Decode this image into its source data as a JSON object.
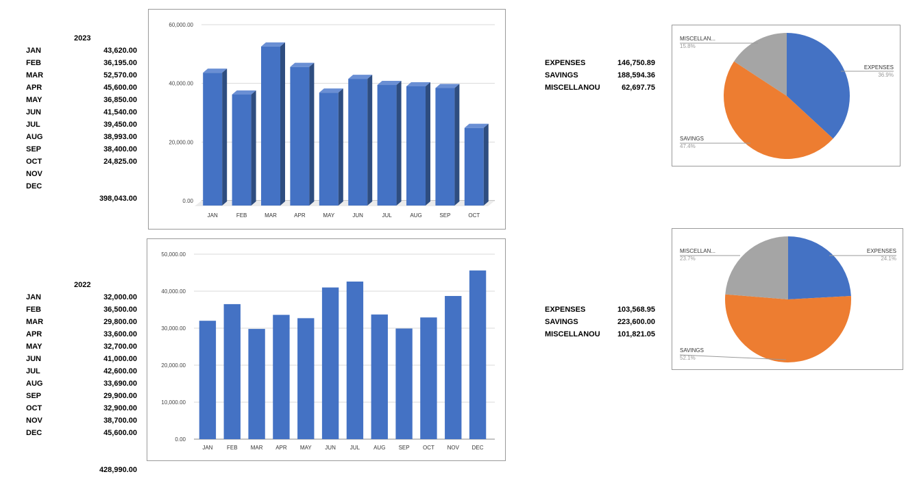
{
  "tables": [
    {
      "year": "2023",
      "months": [
        "JAN",
        "FEB",
        "MAR",
        "APR",
        "MAY",
        "JUN",
        "JUL",
        "AUG",
        "SEP",
        "OCT",
        "NOV",
        "DEC"
      ],
      "values": [
        "43,620.00",
        "36,195.00",
        "52,570.00",
        "45,600.00",
        "36,850.00",
        "41,540.00",
        "39,450.00",
        "38,993.00",
        "38,400.00",
        "24,825.00",
        "",
        ""
      ],
      "total": "398,043.00"
    },
    {
      "year": "2022",
      "months": [
        "JAN",
        "FEB",
        "MAR",
        "APR",
        "MAY",
        "JUN",
        "JUL",
        "AUG",
        "SEP",
        "OCT",
        "NOV",
        "DEC"
      ],
      "values": [
        "32,000.00",
        "36,500.00",
        "29,800.00",
        "33,600.00",
        "32,700.00",
        "41,000.00",
        "42,600.00",
        "33,690.00",
        "29,900.00",
        "32,900.00",
        "38,700.00",
        "45,600.00"
      ],
      "total": "428,990.00"
    }
  ],
  "summaries": [
    {
      "rows": [
        {
          "label": "EXPENSES",
          "value": "146,750.89"
        },
        {
          "label": "SAVINGS",
          "value": "188,594.36"
        },
        {
          "label": "MISCELLANOUS",
          "value": "62,697.75"
        }
      ]
    },
    {
      "rows": [
        {
          "label": "EXPENSES",
          "value": "103,568.95"
        },
        {
          "label": "SAVINGS",
          "value": "223,600.00"
        },
        {
          "label": "MISCELLANOUS",
          "value": "101,821.05"
        }
      ]
    }
  ],
  "chart_data": [
    {
      "type": "bar",
      "style": "3d",
      "title": "",
      "categories": [
        "JAN",
        "FEB",
        "MAR",
        "APR",
        "MAY",
        "JUN",
        "JUL",
        "AUG",
        "SEP",
        "OCT"
      ],
      "values": [
        43620,
        36195,
        52570,
        45600,
        36850,
        41540,
        39450,
        38993,
        38400,
        24825
      ],
      "ylim": [
        0,
        60000
      ],
      "yticks": [
        "0.00",
        "20,000.00",
        "40,000.00",
        "60,000.00"
      ],
      "ytick_values": [
        0,
        20000,
        40000,
        60000
      ],
      "color": "#4472c4",
      "grid": true
    },
    {
      "type": "bar",
      "title": "",
      "categories": [
        "JAN",
        "FEB",
        "MAR",
        "APR",
        "MAY",
        "JUN",
        "JUL",
        "AUG",
        "SEP",
        "OCT",
        "NOV",
        "DEC"
      ],
      "values": [
        32000,
        36500,
        29800,
        33600,
        32700,
        41000,
        42600,
        33690,
        29900,
        32900,
        38700,
        45600
      ],
      "ylim": [
        0,
        50000
      ],
      "yticks": [
        "0.00",
        "10,000.00",
        "20,000.00",
        "30,000.00",
        "40,000.00",
        "50,000.00"
      ],
      "ytick_values": [
        0,
        10000,
        20000,
        30000,
        40000,
        50000
      ],
      "color": "#4472c4",
      "grid": true
    },
    {
      "type": "pie",
      "slices": [
        {
          "label": "EXPENSES",
          "pct_label": "36.9%",
          "value": 36.9,
          "color": "#4472c4"
        },
        {
          "label": "SAVINGS",
          "pct_label": "47.4%",
          "value": 47.4,
          "color": "#ed7d31"
        },
        {
          "label": "MISCELLAN...",
          "pct_label": "15.8%",
          "value": 15.8,
          "color": "#a5a5a5"
        }
      ]
    },
    {
      "type": "pie",
      "slices": [
        {
          "label": "EXPENSES",
          "pct_label": "24.1%",
          "value": 24.1,
          "color": "#4472c4"
        },
        {
          "label": "SAVINGS",
          "pct_label": "52.1%",
          "value": 52.1,
          "color": "#ed7d31"
        },
        {
          "label": "MISCELLAN...",
          "pct_label": "23.7%",
          "value": 23.7,
          "color": "#a5a5a5"
        }
      ]
    }
  ]
}
